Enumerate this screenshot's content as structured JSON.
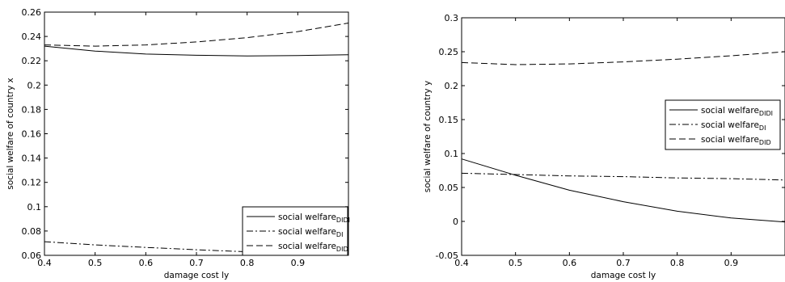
{
  "chart_data": [
    {
      "type": "line",
      "xlabel": "damage cost ly",
      "ylabel": "social welfare of country x",
      "xlim": [
        0.4,
        1.0
      ],
      "ylim": [
        0.06,
        0.26
      ],
      "xticks": [
        "0.4",
        "0.5",
        "0.6",
        "0.7",
        "0.8",
        "0.9"
      ],
      "yticks": [
        "0.06",
        "0.08",
        "0.1",
        "0.12",
        "0.14",
        "0.16",
        "0.18",
        "0.2",
        "0.22",
        "0.24",
        "0.26"
      ],
      "legend_position": "lower-right",
      "series": [
        {
          "name": "social welfare",
          "subscript": "DIDI",
          "style": "solid",
          "x": [
            0.4,
            0.5,
            0.6,
            0.7,
            0.8,
            0.9,
            1.0
          ],
          "values": [
            0.232,
            0.228,
            0.2255,
            0.2245,
            0.224,
            0.2243,
            0.225
          ]
        },
        {
          "name": "social welfare",
          "subscript": "DI",
          "style": "dashdot",
          "x": [
            0.4,
            0.5,
            0.6,
            0.7,
            0.8,
            0.9,
            1.0
          ],
          "values": [
            0.0712,
            0.0686,
            0.0665,
            0.0646,
            0.0629,
            0.0616,
            0.0607
          ]
        },
        {
          "name": "social welfare",
          "subscript": "DID",
          "style": "dashed",
          "x": [
            0.4,
            0.5,
            0.6,
            0.7,
            0.8,
            0.9,
            1.0
          ],
          "values": [
            0.233,
            0.232,
            0.233,
            0.2355,
            0.239,
            0.244,
            0.251
          ]
        }
      ]
    },
    {
      "type": "line",
      "xlabel": "damage cost ly",
      "ylabel": "social welfare of country y",
      "xlim": [
        0.4,
        1.0
      ],
      "ylim": [
        -0.05,
        0.3
      ],
      "xticks": [
        "0.4",
        "0.5",
        "0.6",
        "0.7",
        "0.8",
        "0.9"
      ],
      "yticks": [
        "-0.05",
        "0",
        "0.05",
        "0.1",
        "0.15",
        "0.2",
        "0.25",
        "0.3"
      ],
      "legend_position": "middle-right",
      "series": [
        {
          "name": "social welfare",
          "subscript": "DIDI",
          "style": "solid",
          "x": [
            0.4,
            0.5,
            0.6,
            0.7,
            0.8,
            0.9,
            1.0
          ],
          "values": [
            0.092,
            0.068,
            0.046,
            0.029,
            0.015,
            0.005,
            -0.001
          ]
        },
        {
          "name": "social welfare",
          "subscript": "DI",
          "style": "dashdot",
          "x": [
            0.4,
            0.5,
            0.6,
            0.7,
            0.8,
            0.9,
            1.0
          ],
          "values": [
            0.071,
            0.069,
            0.067,
            0.066,
            0.064,
            0.063,
            0.061
          ]
        },
        {
          "name": "social welfare",
          "subscript": "DID",
          "style": "dashed",
          "x": [
            0.4,
            0.5,
            0.6,
            0.7,
            0.8,
            0.9,
            1.0
          ],
          "values": [
            0.234,
            0.231,
            0.232,
            0.235,
            0.239,
            0.244,
            0.25
          ]
        }
      ]
    }
  ]
}
